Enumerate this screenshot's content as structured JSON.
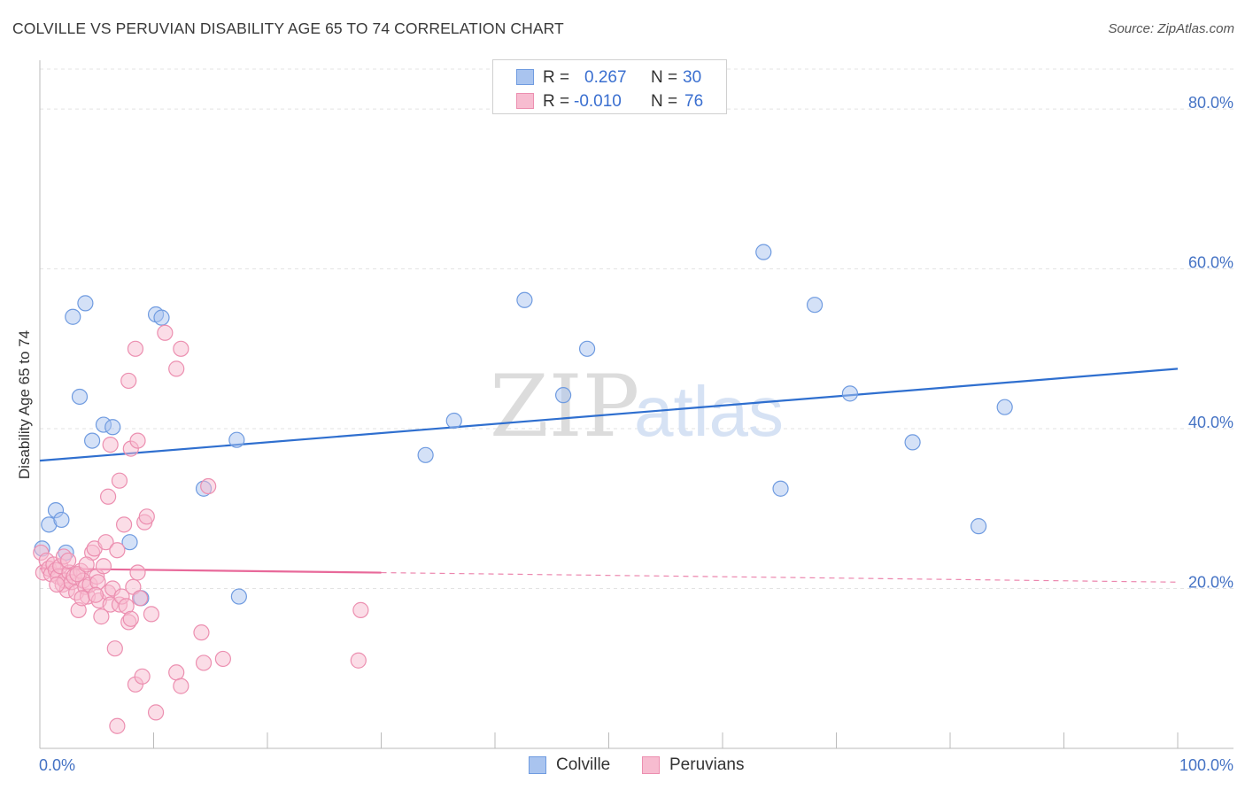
{
  "header": {
    "title": "COLVILLE VS PERUVIAN DISABILITY AGE 65 TO 74 CORRELATION CHART",
    "source": "Source: ZipAtlas.com"
  },
  "legend": {
    "rows": [
      {
        "r_label": "R =",
        "r_value": "0.267",
        "n_label": "N =",
        "n_value": "30",
        "color": "#a9c4ef",
        "border": "#6f9be0"
      },
      {
        "r_label": "R =",
        "r_value": "-0.010",
        "n_label": "N =",
        "n_value": "76",
        "color": "#f7bcd0",
        "border": "#ec8fb0"
      }
    ]
  },
  "bottom_legend": {
    "items": [
      {
        "label": "Colville",
        "color": "#a9c4ef",
        "border": "#6f9be0"
      },
      {
        "label": "Peruvians",
        "color": "#f7bcd0",
        "border": "#ec8fb0"
      }
    ]
  },
  "watermark": {
    "zip": "ZIP",
    "atlas": "atlas"
  },
  "chart_data": {
    "type": "scatter",
    "title": "COLVILLE VS PERUVIAN DISABILITY AGE 65 TO 74 CORRELATION CHART",
    "xlabel": "",
    "ylabel": "Disability Age 65 to 74",
    "xlim": [
      0,
      100
    ],
    "ylim": [
      0,
      85
    ],
    "x_tick_labels": [
      "0.0%",
      "100.0%"
    ],
    "y_ticks": [
      20,
      40,
      60,
      80
    ],
    "y_tick_labels": [
      "20.0%",
      "40.0%",
      "60.0%",
      "80.0%"
    ],
    "grid": true,
    "legend_position": "top-center",
    "series": [
      {
        "name": "Colville",
        "color": "#6f9be0",
        "fill": "#a9c4ef",
        "trend_color": "#2f6fcf",
        "trend": {
          "x": [
            0,
            100
          ],
          "y": [
            36.0,
            47.5
          ],
          "solid_until": 100
        },
        "points": [
          {
            "x": 0.2,
            "y": 25.0
          },
          {
            "x": 0.8,
            "y": 28.0
          },
          {
            "x": 1.4,
            "y": 29.8
          },
          {
            "x": 1.9,
            "y": 28.6
          },
          {
            "x": 2.3,
            "y": 24.5
          },
          {
            "x": 2.9,
            "y": 54.0
          },
          {
            "x": 3.5,
            "y": 44.0
          },
          {
            "x": 4.0,
            "y": 55.7
          },
          {
            "x": 4.6,
            "y": 38.5
          },
          {
            "x": 5.6,
            "y": 40.5
          },
          {
            "x": 6.4,
            "y": 40.2
          },
          {
            "x": 7.9,
            "y": 25.8
          },
          {
            "x": 10.2,
            "y": 54.3
          },
          {
            "x": 10.7,
            "y": 53.9
          },
          {
            "x": 8.9,
            "y": 18.8
          },
          {
            "x": 14.4,
            "y": 32.5
          },
          {
            "x": 17.3,
            "y": 38.6
          },
          {
            "x": 17.5,
            "y": 19.0
          },
          {
            "x": 33.9,
            "y": 36.7
          },
          {
            "x": 36.4,
            "y": 41.0
          },
          {
            "x": 42.6,
            "y": 56.1
          },
          {
            "x": 46.0,
            "y": 44.2
          },
          {
            "x": 48.1,
            "y": 50.0
          },
          {
            "x": 63.6,
            "y": 62.1
          },
          {
            "x": 65.1,
            "y": 32.5
          },
          {
            "x": 68.1,
            "y": 55.5
          },
          {
            "x": 71.2,
            "y": 44.4
          },
          {
            "x": 76.7,
            "y": 38.3
          },
          {
            "x": 82.5,
            "y": 27.8
          },
          {
            "x": 84.8,
            "y": 42.7
          }
        ]
      },
      {
        "name": "Peruvians",
        "color": "#ec8fb0",
        "fill": "#f7bcd0",
        "trend_color": "#e8699a",
        "trend": {
          "x": [
            0,
            100
          ],
          "y": [
            22.5,
            20.8
          ],
          "solid_until": 30
        },
        "points": [
          {
            "x": 0.1,
            "y": 24.5
          },
          {
            "x": 0.3,
            "y": 22.0
          },
          {
            "x": 0.6,
            "y": 23.5
          },
          {
            "x": 0.8,
            "y": 22.5
          },
          {
            "x": 1.0,
            "y": 21.8
          },
          {
            "x": 1.2,
            "y": 23.0
          },
          {
            "x": 1.4,
            "y": 22.3
          },
          {
            "x": 1.6,
            "y": 21.5
          },
          {
            "x": 1.8,
            "y": 22.8
          },
          {
            "x": 2.0,
            "y": 20.5
          },
          {
            "x": 2.2,
            "y": 21.0
          },
          {
            "x": 2.4,
            "y": 19.8
          },
          {
            "x": 2.6,
            "y": 22.0
          },
          {
            "x": 2.8,
            "y": 20.8
          },
          {
            "x": 3.0,
            "y": 21.5
          },
          {
            "x": 3.2,
            "y": 19.5
          },
          {
            "x": 3.4,
            "y": 17.3
          },
          {
            "x": 3.6,
            "y": 22.2
          },
          {
            "x": 3.8,
            "y": 21.0
          },
          {
            "x": 4.0,
            "y": 20.2
          },
          {
            "x": 4.2,
            "y": 19.0
          },
          {
            "x": 4.4,
            "y": 20.5
          },
          {
            "x": 4.6,
            "y": 24.5
          },
          {
            "x": 4.8,
            "y": 25.0
          },
          {
            "x": 5.0,
            "y": 21.5
          },
          {
            "x": 5.2,
            "y": 18.5
          },
          {
            "x": 5.4,
            "y": 16.5
          },
          {
            "x": 5.6,
            "y": 22.8
          },
          {
            "x": 5.8,
            "y": 25.8
          },
          {
            "x": 6.0,
            "y": 19.5
          },
          {
            "x": 6.2,
            "y": 18.0
          },
          {
            "x": 6.4,
            "y": 20.0
          },
          {
            "x": 6.6,
            "y": 12.5
          },
          {
            "x": 6.8,
            "y": 24.8
          },
          {
            "x": 7.0,
            "y": 18.0
          },
          {
            "x": 7.2,
            "y": 19.0
          },
          {
            "x": 7.4,
            "y": 28.0
          },
          {
            "x": 7.6,
            "y": 17.8
          },
          {
            "x": 7.8,
            "y": 15.8
          },
          {
            "x": 8.0,
            "y": 16.2
          },
          {
            "x": 8.2,
            "y": 20.2
          },
          {
            "x": 8.4,
            "y": 8.0
          },
          {
            "x": 8.6,
            "y": 22.0
          },
          {
            "x": 8.8,
            "y": 18.8
          },
          {
            "x": 9.2,
            "y": 28.3
          },
          {
            "x": 9.4,
            "y": 29.0
          },
          {
            "x": 9.8,
            "y": 16.8
          },
          {
            "x": 10.2,
            "y": 4.5
          },
          {
            "x": 6.0,
            "y": 31.5
          },
          {
            "x": 7.0,
            "y": 33.5
          },
          {
            "x": 8.0,
            "y": 37.5
          },
          {
            "x": 8.6,
            "y": 38.5
          },
          {
            "x": 6.2,
            "y": 38.0
          },
          {
            "x": 7.8,
            "y": 46.0
          },
          {
            "x": 8.4,
            "y": 50.0
          },
          {
            "x": 11.0,
            "y": 52.0
          },
          {
            "x": 12.0,
            "y": 47.5
          },
          {
            "x": 12.4,
            "y": 50.0
          },
          {
            "x": 12.0,
            "y": 9.5
          },
          {
            "x": 12.4,
            "y": 7.8
          },
          {
            "x": 14.2,
            "y": 14.5
          },
          {
            "x": 14.4,
            "y": 10.7
          },
          {
            "x": 14.8,
            "y": 32.8
          },
          {
            "x": 16.1,
            "y": 11.2
          },
          {
            "x": 28.0,
            "y": 11.0
          },
          {
            "x": 28.2,
            "y": 17.3
          },
          {
            "x": 6.8,
            "y": 2.8
          },
          {
            "x": 9.0,
            "y": 9.0
          },
          {
            "x": 2.1,
            "y": 24.0
          },
          {
            "x": 3.3,
            "y": 21.8
          },
          {
            "x": 4.1,
            "y": 23.0
          },
          {
            "x": 5.1,
            "y": 20.8
          },
          {
            "x": 1.5,
            "y": 20.5
          },
          {
            "x": 2.5,
            "y": 23.5
          },
          {
            "x": 3.7,
            "y": 18.8
          },
          {
            "x": 4.9,
            "y": 19.2
          }
        ]
      }
    ]
  }
}
